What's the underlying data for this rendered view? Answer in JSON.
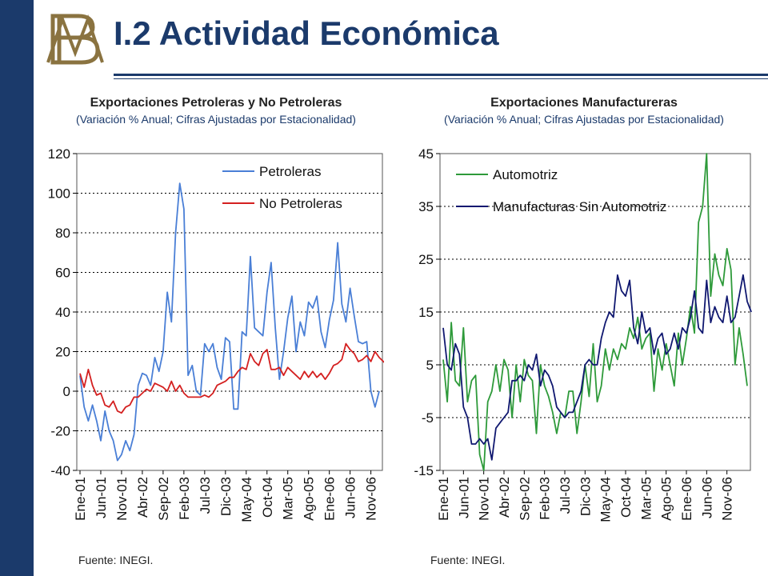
{
  "header": {
    "title": "I.2 Actividad Económica"
  },
  "colors": {
    "brand": "#1b3a6b",
    "logo": "#8a7340",
    "petroleras": "#4a7fd6",
    "no_petroleras": "#d42020",
    "automotriz": "#2e9a3a",
    "manufacturas": "#101870"
  },
  "chart_data": [
    {
      "type": "line",
      "title": "Exportaciones Petroleras y No Petroleras",
      "subtitle": "(Variación % Anual; Cifras Ajustadas por Estacionalidad)",
      "source": "Fuente: INEGI.",
      "xlabel": "",
      "ylabel": "",
      "ylim": [
        -40,
        120
      ],
      "yticks": [
        "120",
        "100",
        "80",
        "60",
        "40",
        "20",
        "0",
        "-20",
        "-40"
      ],
      "ytick_values": [
        120,
        100,
        80,
        60,
        40,
        20,
        0,
        -20,
        -40
      ],
      "grid": "horizontal dashed",
      "legend": "top-right",
      "xtick_labels": [
        "Ene-01",
        "Jun-01",
        "Nov-01",
        "Abr-02",
        "Sep-02",
        "Feb-03",
        "Jul-03",
        "Dic-03",
        "May-04",
        "Oct-04",
        "Mar-05",
        "Ago-05",
        "Ene-06",
        "Jun-06",
        "Nov-06"
      ],
      "series": [
        {
          "name": "Petroleras",
          "color_key": "petroleras",
          "values": [
            8,
            -8,
            -15,
            -7,
            -15,
            -25,
            -10,
            -20,
            -25,
            -35,
            -32,
            -25,
            -30,
            -22,
            3,
            9,
            8,
            3,
            17,
            10,
            20,
            50,
            35,
            80,
            105,
            92,
            8,
            13,
            0,
            -2,
            24,
            20,
            24,
            12,
            6,
            27,
            25,
            -9,
            -9,
            30,
            28,
            68,
            32,
            30,
            28,
            50,
            65,
            32,
            6,
            20,
            37,
            48,
            20,
            35,
            28,
            45,
            42,
            48,
            30,
            22,
            36,
            46,
            75,
            44,
            35,
            52,
            38,
            25,
            24,
            25,
            0,
            -8,
            0
          ]
        },
        {
          "name": "No Petroleras",
          "color_key": "no_petroleras",
          "values": [
            9,
            2,
            11,
            3,
            -2,
            -1,
            -7,
            -8,
            -5,
            -10,
            -11,
            -8,
            -7,
            -3,
            -3,
            -1,
            1,
            0,
            4,
            3,
            2,
            0,
            5,
            0,
            3,
            -1,
            -3,
            -3,
            -3,
            -3,
            -2,
            -3,
            -1,
            3,
            4,
            5,
            7,
            7,
            10,
            12,
            11,
            19,
            15,
            13,
            19,
            21,
            11,
            11,
            12,
            8,
            12,
            10,
            8,
            6,
            10,
            7,
            10,
            7,
            9,
            6,
            9,
            13,
            14,
            16,
            24,
            21,
            19,
            15,
            16,
            18,
            15,
            20,
            17,
            15,
            13,
            11
          ]
        }
      ]
    },
    {
      "type": "line",
      "title": "Exportaciones Manufactureras",
      "subtitle": "(Variación % Anual; Cifras Ajustadas por Estacionalidad)",
      "source": "Fuente: INEGI.",
      "xlabel": "",
      "ylabel": "",
      "ylim": [
        -15,
        45
      ],
      "yticks": [
        "45",
        "35",
        "25",
        "15",
        "5",
        "-5",
        "-15"
      ],
      "ytick_values": [
        45,
        35,
        25,
        15,
        5,
        -5,
        -15
      ],
      "grid": "horizontal dashed",
      "legend": "top-left",
      "xtick_labels": [
        "Ene-01",
        "Jun-01",
        "Nov-01",
        "Abr-02",
        "Sep-02",
        "Feb-03",
        "Jul-03",
        "Dic-03",
        "May-04",
        "Oct-04",
        "Mar-05",
        "Ago-05",
        "Ene-06",
        "Jun-06",
        "Nov-06"
      ],
      "series": [
        {
          "name": "Automotriz",
          "color_key": "automotriz",
          "values": [
            6,
            -2,
            13,
            2,
            1,
            12,
            -2,
            2,
            3,
            -12,
            -15,
            -2,
            0,
            5,
            0,
            6,
            4,
            -5,
            5,
            -2,
            6,
            3,
            2,
            -8,
            5,
            1,
            -1,
            -4,
            -8,
            -4,
            -5,
            0,
            0,
            -8,
            -2,
            5,
            -1,
            9,
            -2,
            1,
            8,
            4,
            8,
            6,
            9,
            8,
            12,
            10,
            14,
            8,
            10,
            11,
            0,
            8,
            4,
            9,
            5,
            1,
            11,
            5,
            10,
            16,
            11,
            32,
            35,
            45,
            18,
            26,
            22,
            20,
            27,
            23,
            5,
            12,
            7,
            1
          ]
        },
        {
          "name": "Manufacturas Sin Automotriz",
          "color_key": "manufacturas",
          "values": [
            12,
            5,
            4,
            9,
            7,
            -3,
            -5,
            -10,
            -10,
            -9,
            -10,
            -9,
            -13,
            -7,
            -6,
            -5,
            -4,
            2,
            2,
            3,
            2,
            5,
            4,
            7,
            1,
            4,
            3,
            1,
            -3,
            -4,
            -5,
            -4,
            -4,
            -2,
            0,
            5,
            6,
            5,
            5,
            10,
            13,
            15,
            14,
            22,
            19,
            18,
            21,
            12,
            9,
            15,
            11,
            12,
            7,
            10,
            11,
            7,
            8,
            11,
            8,
            12,
            11,
            14,
            19,
            12,
            11,
            21,
            13,
            16,
            14,
            13,
            18,
            13,
            14,
            18,
            22,
            17,
            15
          ]
        }
      ]
    }
  ]
}
